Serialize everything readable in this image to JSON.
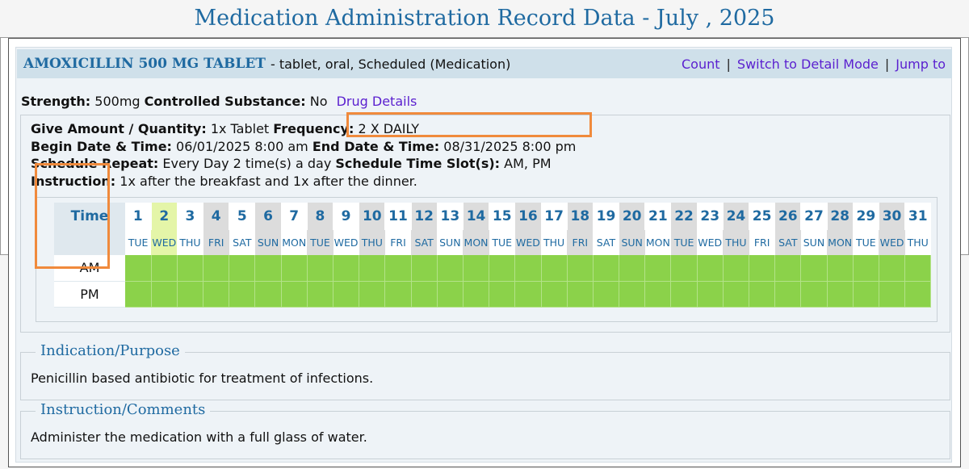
{
  "page": {
    "title": "Medication Administration Record Data - July , 2025"
  },
  "medication": {
    "name": "AMOXICILLIN 500 MG TABLET",
    "description": "- tablet, oral, Scheduled (Medication)",
    "links": {
      "count": "Count",
      "switch": "Switch to Detail Mode",
      "jump": "Jump to",
      "separator": "|"
    },
    "strength_label": "Strength:",
    "strength_value": "500mg",
    "controlled_label": "Controlled Substance:",
    "controlled_value": "No",
    "drug_details": "Drug Details"
  },
  "details": {
    "give_label": "Give Amount / Quantity:",
    "give_value": "1x Tablet",
    "frequency_label": "Frequency:",
    "frequency_value": "2 X DAILY",
    "begin_label": "Begin Date & Time:",
    "begin_value": "06/01/2025 8:00 am",
    "end_label": "End Date & Time:",
    "end_value": "08/31/2025 8:00 pm",
    "repeat_label": "Schedule Repeat:",
    "repeat_value": "Every Day 2 time(s) a day",
    "slots_label": "Schedule Time Slot(s):",
    "slots_value": "AM, PM",
    "instruction_label": "Instruction:",
    "instruction_value": "1x after the breakfast and 1x after the dinner."
  },
  "grid": {
    "time_header": "Time",
    "days": [
      "1",
      "2",
      "3",
      "4",
      "5",
      "6",
      "7",
      "8",
      "9",
      "10",
      "11",
      "12",
      "13",
      "14",
      "15",
      "16",
      "17",
      "18",
      "19",
      "20",
      "21",
      "22",
      "23",
      "24",
      "25",
      "26",
      "27",
      "28",
      "29",
      "30",
      "31"
    ],
    "weekdays": [
      "TUE",
      "WED",
      "THU",
      "FRI",
      "SAT",
      "SUN",
      "MON",
      "TUE",
      "WED",
      "THU",
      "FRI",
      "SAT",
      "SUN",
      "MON",
      "TUE",
      "WED",
      "THU",
      "FRI",
      "SAT",
      "SUN",
      "MON",
      "TUE",
      "WED",
      "THU",
      "FRI",
      "SAT",
      "SUN",
      "MON",
      "TUE",
      "WED",
      "THU"
    ],
    "highlighted_day": "2",
    "slots": [
      "AM",
      "PM"
    ],
    "given_color": "#8bd24a",
    "highlight_color": "#e4f5a8"
  },
  "indication": {
    "legend": "Indication/Purpose",
    "text": "Penicillin based antibiotic for treatment of infections."
  },
  "comments": {
    "legend": "Instruction/Comments",
    "text": "Administer the medication with a full glass of water."
  }
}
